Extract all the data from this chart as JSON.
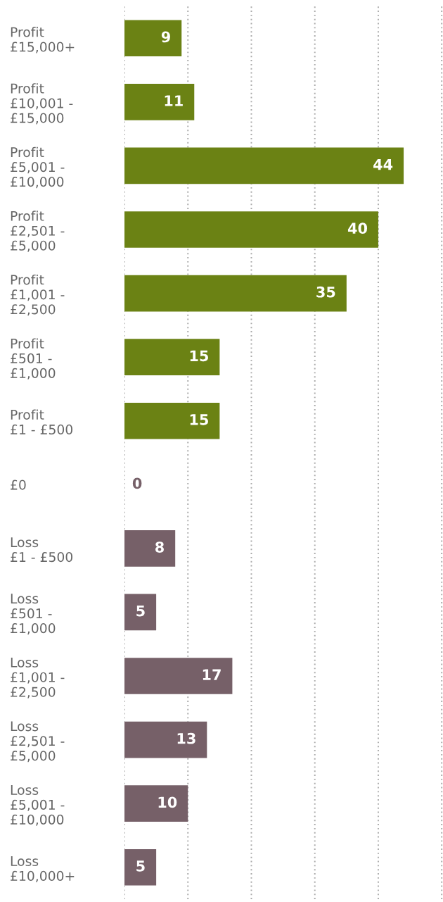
{
  "chart_data": {
    "type": "bar",
    "orientation": "horizontal",
    "categories": [
      "Profit\n£15,000+",
      "Profit\n£10,001 -\n£15,000",
      "Profit\n£5,001 -\n£10,000",
      "Profit\n£2,501 -\n£5,000",
      "Profit\n£1,001 -\n£2,500",
      "Profit\n£501 -\n£1,000",
      "Profit\n£1 - £500",
      "£0",
      "Loss\n£1 - £500",
      "Loss\n£501 -\n£1,000",
      "Loss\n£1,001 -\n£2,500",
      "Loss\n£2,501 -\n£5,000",
      "Loss\n£5,001 -\n£10,000",
      "Loss\n£10,000+"
    ],
    "values": [
      9,
      11,
      44,
      40,
      35,
      15,
      15,
      0,
      8,
      5,
      17,
      13,
      10,
      5
    ],
    "colors": [
      "#6b8214",
      "#6b8214",
      "#6b8214",
      "#6b8214",
      "#6b8214",
      "#6b8214",
      "#6b8214",
      "#766068",
      "#766068",
      "#766068",
      "#766068",
      "#766068",
      "#766068",
      "#766068"
    ],
    "xlim": [
      0,
      50.2
    ],
    "xticks": [
      {
        "value": 0,
        "label": null
      },
      {
        "value": 10,
        "label": null
      },
      {
        "value": 20,
        "label": null
      },
      {
        "value": 30,
        "label": null
      },
      {
        "value": 40,
        "label": null
      },
      {
        "value": 50,
        "label": null
      }
    ],
    "grid": "x",
    "tick_labels": "y",
    "data_labels": true
  }
}
